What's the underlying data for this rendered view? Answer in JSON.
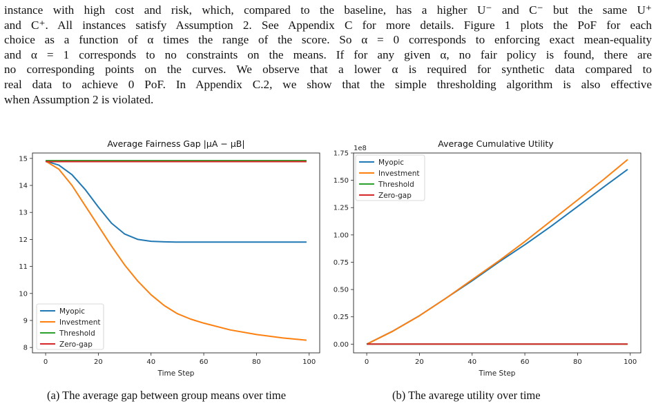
{
  "paragraph_lines": [
    "instance with high cost and risk, which, compared to the baseline, has a higher U⁻ and C⁻ but the same U⁺",
    "and C⁺. All instances satisfy Assumption 2. See Appendix C for more details. Figure 1 plots the PoF for each",
    "choice as a function of α times the range of the score. So α = 0 corresponds to enforcing exact mean-equality",
    "and α = 1 corresponds to no constraints on the means. If for any given α, no fair policy is found, there are",
    "no corresponding points on the curves. We observe that a lower α is required for synthetic data compared to",
    "real data to achieve 0 PoF. In Appendix C.2, we show that the simple thresholding algorithm is also effective",
    "when Assumption 2 is violated."
  ],
  "captions": {
    "left": "(a) The average gap between group means over time",
    "right": "(b) The avarege utility over time"
  },
  "colors": {
    "Myopic": "#1f77b4",
    "Investment": "#ff7f0e",
    "Threshold": "#2ca02c",
    "Zero-gap": "#d62728"
  },
  "chart_data": [
    {
      "type": "line",
      "title": "Average Fairness Gap |μA − μB|",
      "xlabel": "Time Step",
      "ylabel": "",
      "xlim": [
        -5,
        104
      ],
      "ylim": [
        7.8,
        15.2
      ],
      "xticks": [
        0,
        20,
        40,
        60,
        80,
        100
      ],
      "yticks": [
        8,
        9,
        10,
        11,
        12,
        13,
        14,
        15
      ],
      "ytick_labels": [
        "8",
        "9",
        "10",
        "11",
        "12",
        "13",
        "14",
        "15"
      ],
      "legend_location": "lower-left",
      "series": [
        {
          "name": "Myopic",
          "x": [
            0,
            5,
            10,
            15,
            20,
            25,
            30,
            35,
            40,
            45,
            50,
            60,
            70,
            80,
            99
          ],
          "y": [
            14.9,
            14.75,
            14.4,
            13.85,
            13.2,
            12.6,
            12.2,
            12.0,
            11.93,
            11.91,
            11.9,
            11.9,
            11.9,
            11.9,
            11.9
          ]
        },
        {
          "name": "Investment",
          "x": [
            0,
            5,
            10,
            15,
            20,
            25,
            30,
            35,
            40,
            45,
            50,
            55,
            60,
            70,
            80,
            90,
            99
          ],
          "y": [
            14.9,
            14.6,
            14.0,
            13.25,
            12.5,
            11.75,
            11.05,
            10.45,
            9.95,
            9.55,
            9.25,
            9.05,
            8.9,
            8.65,
            8.48,
            8.35,
            8.27
          ]
        },
        {
          "name": "Threshold",
          "x": [
            0,
            99
          ],
          "y": [
            14.92,
            14.92
          ]
        },
        {
          "name": "Zero-gap",
          "x": [
            0,
            99
          ],
          "y": [
            14.88,
            14.88
          ]
        }
      ]
    },
    {
      "type": "line",
      "title": "Average Cumulative Utility",
      "xlabel": "Time Step",
      "ylabel": "",
      "offset_text": "1e8",
      "xlim": [
        -5,
        104
      ],
      "ylim": [
        -0.08,
        1.75
      ],
      "xticks": [
        0,
        20,
        40,
        60,
        80,
        100
      ],
      "yticks": [
        0.0,
        0.25,
        0.5,
        0.75,
        1.0,
        1.25,
        1.5,
        1.75
      ],
      "ytick_labels": [
        "0.00",
        "0.25",
        "0.50",
        "0.75",
        "1.00",
        "1.25",
        "1.50",
        "1.75"
      ],
      "legend_location": "upper-left",
      "series": [
        {
          "name": "Myopic",
          "x": [
            0,
            10,
            20,
            30,
            40,
            50,
            60,
            70,
            80,
            90,
            99
          ],
          "y": [
            0.0,
            0.12,
            0.26,
            0.42,
            0.58,
            0.75,
            0.91,
            1.08,
            1.26,
            1.44,
            1.6
          ]
        },
        {
          "name": "Investment",
          "x": [
            0,
            10,
            20,
            30,
            40,
            50,
            60,
            70,
            80,
            90,
            99
          ],
          "y": [
            0.0,
            0.12,
            0.26,
            0.42,
            0.59,
            0.76,
            0.94,
            1.13,
            1.32,
            1.51,
            1.69
          ]
        },
        {
          "name": "Threshold",
          "x": [
            0,
            99
          ],
          "y": [
            0.0,
            0.0
          ]
        },
        {
          "name": "Zero-gap",
          "x": [
            0,
            99
          ],
          "y": [
            0.0,
            0.0
          ]
        }
      ]
    }
  ]
}
